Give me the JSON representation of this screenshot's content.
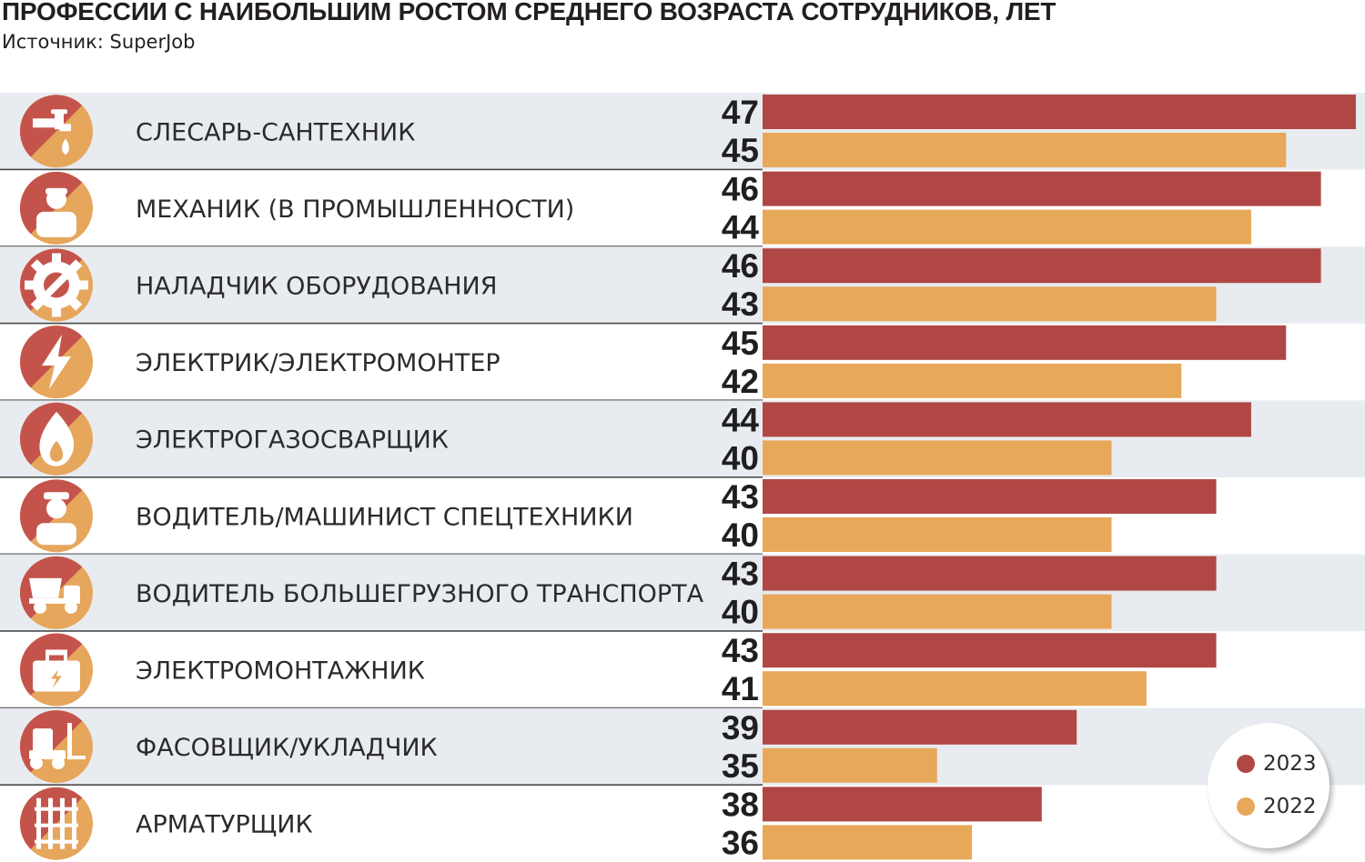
{
  "title": "ПРОФЕССИИ С НАИБОЛЬШИМ РОСТОМ СРЕДНЕГО ВОЗРАСТА СОТРУДНИКОВ, ЛЕТ",
  "subtitle": "Источник: SuperJob",
  "colors": {
    "series_2023": "#b04744",
    "series_2022": "#e8a85a",
    "icon_red": "#c4544b",
    "icon_orange": "#e6a65c",
    "row_shade": "#e8ebf0",
    "divider": "#4a4a4a"
  },
  "chart_data": {
    "type": "bar",
    "orientation": "horizontal",
    "title": "ПРОФЕССИИ С НАИБОЛЬШИМ РОСТОМ СРЕДНЕГО ВОЗРАСТА СОТРУДНИКОВ, ЛЕТ",
    "subtitle": "Источник: SuperJob",
    "categories": [
      "СЛЕСАРЬ-САНТЕХНИК",
      "МЕХАНИК (В ПРОМЫШЛЕННОСТИ)",
      "НАЛАДЧИК ОБОРУДОВАНИЯ",
      "ЭЛЕКТРИК/ЭЛЕКТРОМОНТЕР",
      "ЭЛЕКТРОГАЗОСВАРЩИК",
      "ВОДИТЕЛЬ/МАШИНИСТ СПЕЦТЕХНИКИ",
      "ВОДИТЕЛЬ БОЛЬШЕГРУЗНОГО ТРАНСПОРТА",
      "ЭЛЕКТРОМОНТАЖНИК",
      "ФАСОВЩИК/УКЛАДЧИК",
      "АРМАТУРЩИК"
    ],
    "icons": [
      "faucet-icon",
      "mechanic-worker-icon",
      "gear-wrench-icon",
      "lightning-icon",
      "flame-icon",
      "driver-cap-icon",
      "dump-truck-icon",
      "toolbox-icon",
      "forklift-icon",
      "rebar-frame-icon"
    ],
    "series": [
      {
        "name": "2023",
        "values": [
          47,
          46,
          46,
          45,
          44,
          43,
          43,
          43,
          39,
          38
        ]
      },
      {
        "name": "2022",
        "values": [
          45,
          44,
          43,
          42,
          40,
          40,
          40,
          41,
          35,
          36
        ]
      }
    ],
    "legend": {
      "position": "bottom-right",
      "items": [
        "2023",
        "2022"
      ]
    },
    "xlabel": "",
    "ylabel": "",
    "grid": false
  }
}
